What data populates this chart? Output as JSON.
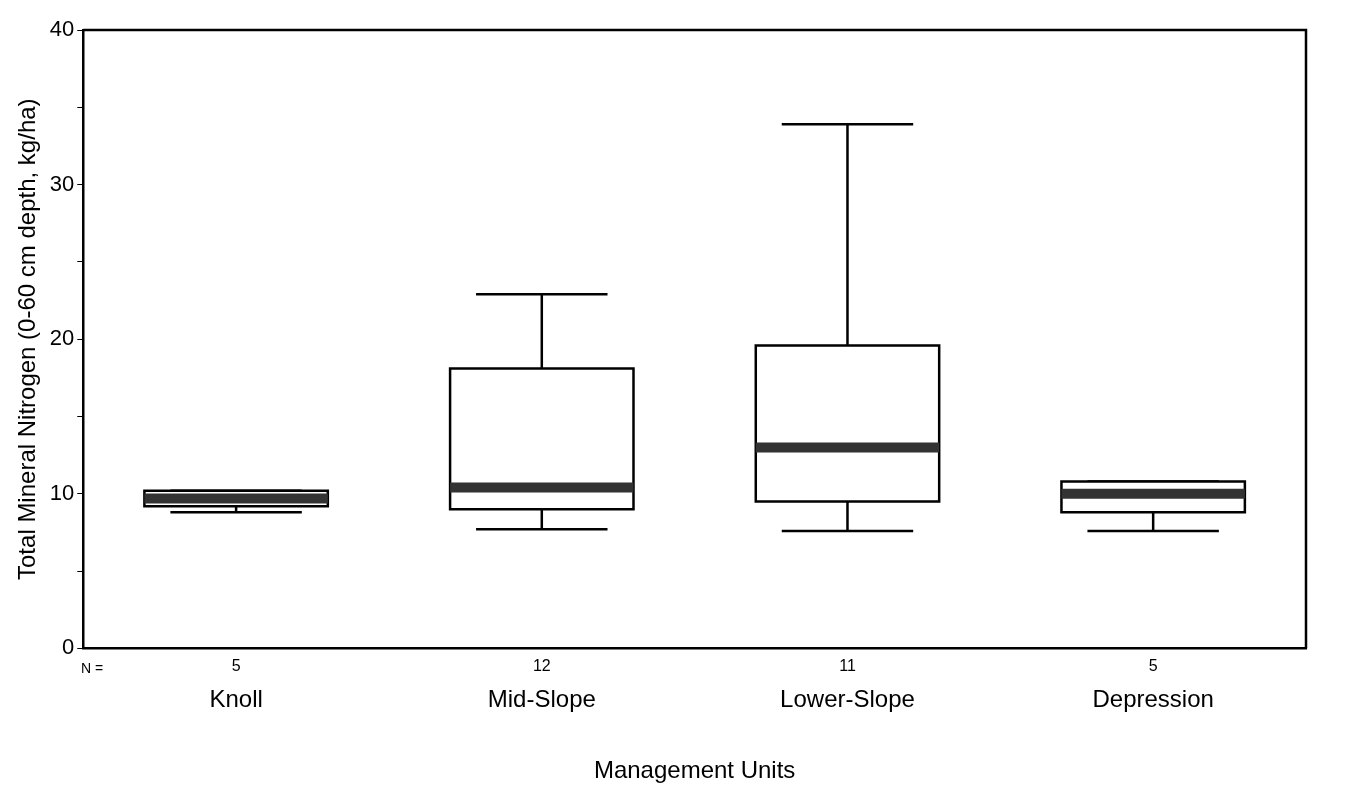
{
  "chart_data": {
    "type": "box",
    "categories": [
      "Knoll",
      "Mid-Slope",
      "Lower-Slope",
      "Depression"
    ],
    "boxes": [
      {
        "low": 8.8,
        "q1": 9.2,
        "median": 9.7,
        "q3": 10.2,
        "high": 10.2
      },
      {
        "low": 7.7,
        "q1": 9.0,
        "median": 10.4,
        "q3": 18.1,
        "high": 22.9
      },
      {
        "low": 7.6,
        "q1": 9.5,
        "median": 13.0,
        "q3": 19.6,
        "high": 33.9
      },
      {
        "low": 7.6,
        "q1": 8.8,
        "median": 10.0,
        "q3": 10.8,
        "high": 10.8
      }
    ],
    "xlabel": "Management Units",
    "ylabel": "Total Mineral Nitrogen (0-60 cm depth, kg/ha)",
    "ylim": [
      0,
      40
    ],
    "yticks": [
      0,
      {
        "value": 5,
        "label": null
      },
      10,
      {
        "value": 15,
        "label": null
      },
      20,
      {
        "value": 25,
        "label": null
      },
      30,
      {
        "value": 35,
        "label": null
      },
      40
    ],
    "annotations": [
      "N =",
      "5",
      "12",
      "11",
      "5"
    ],
    "grid": false,
    "legend": false
  }
}
